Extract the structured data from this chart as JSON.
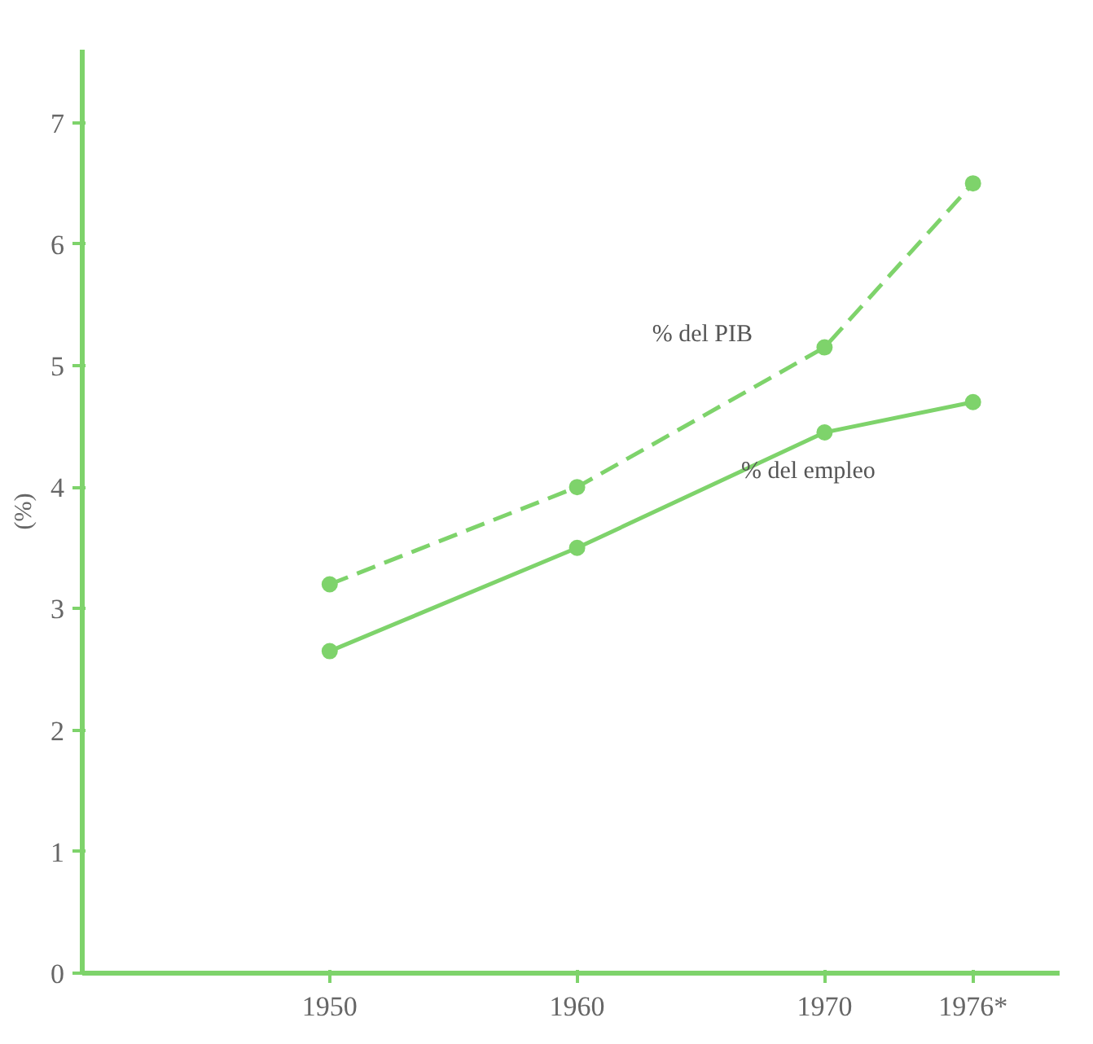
{
  "chart_data": {
    "type": "line",
    "ylabel": "(%)",
    "x": [
      1950,
      1960,
      1970,
      1976
    ],
    "series": [
      {
        "name": "% del PIB",
        "color": "#7ed36b",
        "values": [
          3.2,
          4.0,
          5.15,
          6.5
        ],
        "line_style": "dashed"
      },
      {
        "name": "% del empleo",
        "color": "#7ed36b",
        "values": [
          2.65,
          3.5,
          4.45,
          4.7
        ],
        "line_style": "solid"
      }
    ],
    "xlim": [
      1940,
      1979.5
    ],
    "xticks": [
      1950,
      1960,
      1970,
      {
        "value": 1976,
        "label": "1976*"
      }
    ],
    "ylim": [
      0,
      7.6
    ],
    "yticks": [
      0,
      1,
      2,
      3,
      4,
      5,
      6,
      7
    ],
    "grid": false,
    "legend": false,
    "marker": "circle"
  }
}
